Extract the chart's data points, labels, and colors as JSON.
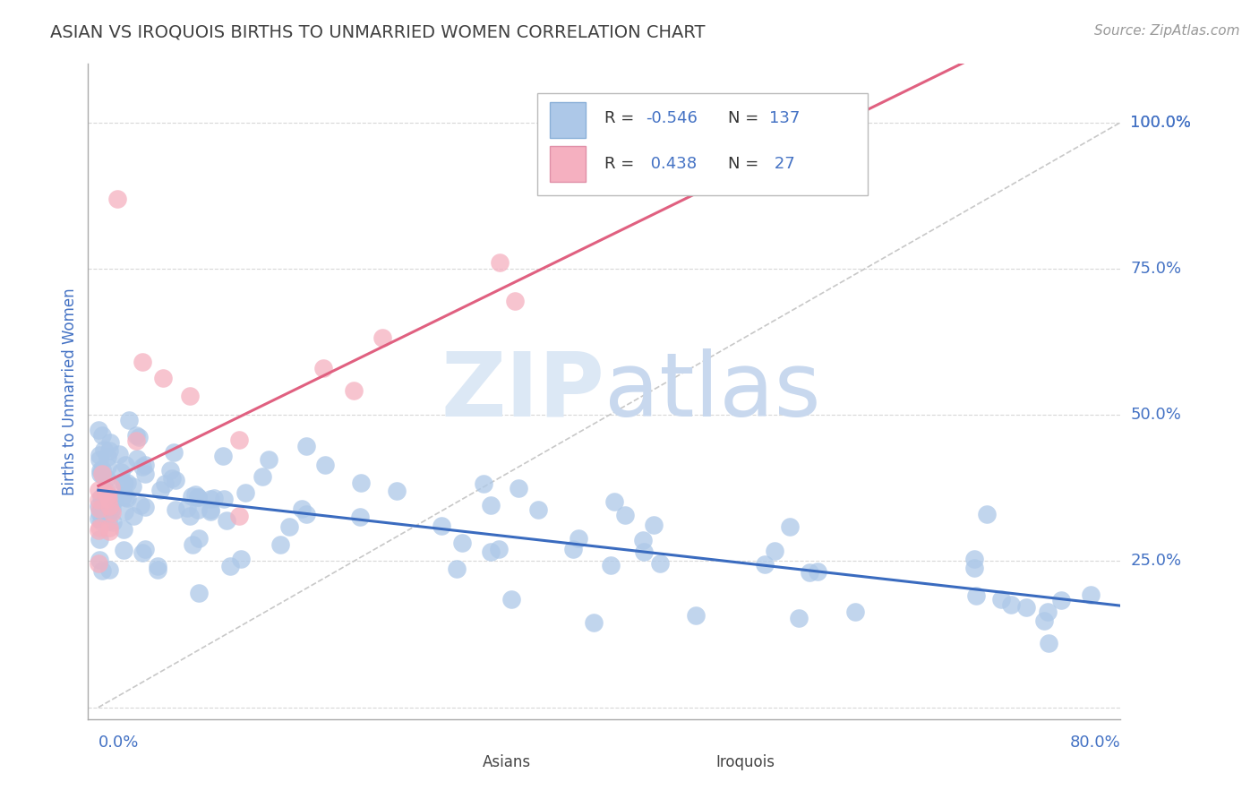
{
  "title": "ASIAN VS IROQUOIS BIRTHS TO UNMARRIED WOMEN CORRELATION CHART",
  "source": "Source: ZipAtlas.com",
  "ylabel": "Births to Unmarried Women",
  "ytick_vals": [
    0.0,
    0.25,
    0.5,
    0.75,
    1.0
  ],
  "ytick_labels": [
    "",
    "25.0%",
    "50.0%",
    "75.0%",
    "100.0%"
  ],
  "xlim": [
    0.0,
    0.8
  ],
  "ylim": [
    -0.02,
    1.1
  ],
  "R_asian": -0.546,
  "N_asian": 137,
  "R_iroquois": 0.438,
  "N_iroquois": 27,
  "asian_fill": "#adc8e8",
  "iroquois_fill": "#f5b0c0",
  "trend_asian_color": "#3a6bbf",
  "trend_iroquois_color": "#e06080",
  "diagonal_color": "#c8c8c8",
  "grid_color": "#c8c8c8",
  "title_color": "#404040",
  "axis_label_color": "#4472c4",
  "legend_text_color": "#4472c4",
  "watermark_zip_color": "#dce8f5",
  "watermark_atlas_color": "#c8d8ee",
  "source_color": "#999999"
}
